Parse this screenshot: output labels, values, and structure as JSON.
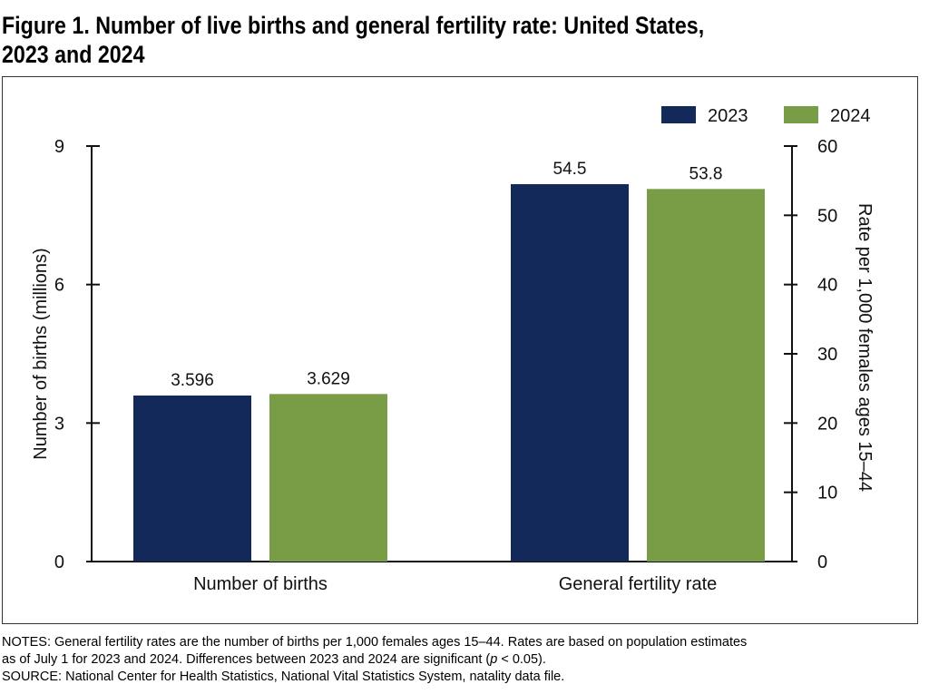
{
  "figure": {
    "title_line1": "Figure 1. Number of live births and general fertility rate: United States,",
    "title_line2": "2023 and 2024"
  },
  "notes": {
    "line1": "NOTES: General fertility rates are the number of births per 1,000 females ages 15–44. Rates are based on population estimates",
    "line2_part1": "as of July 1 for 2023 and 2024. Differences between 2023 and 2024 are significant (",
    "line2_p": "p",
    "line2_part2": " < 0.05).",
    "source": "SOURCE: National Center for Health Statistics, National Vital Statistics System, natality data file."
  },
  "colors": {
    "series_2023": "#13295a",
    "series_2024": "#799c46"
  },
  "chart_data": {
    "type": "bar",
    "categories": [
      "Number of births",
      "General fertility rate"
    ],
    "series": [
      {
        "name": "2023",
        "values": [
          3.596,
          54.5
        ],
        "labels": [
          "3.596",
          "54.5"
        ]
      },
      {
        "name": "2024",
        "values": [
          3.629,
          53.8
        ],
        "labels": [
          "3.629",
          "53.8"
        ]
      }
    ],
    "axes": {
      "left": {
        "label": "Number of births (millions)",
        "range": [
          0,
          9
        ],
        "ticks": [
          0,
          3,
          6,
          9
        ],
        "applies_to": "Number of births"
      },
      "right": {
        "label": "Rate per 1,000 females ages 15–44",
        "range": [
          0,
          60
        ],
        "ticks": [
          0,
          10,
          20,
          30,
          40,
          50,
          60
        ],
        "applies_to": "General fertility rate"
      }
    },
    "legend": {
      "position": "top-right",
      "entries": [
        "2023",
        "2024"
      ]
    },
    "grid": false
  }
}
